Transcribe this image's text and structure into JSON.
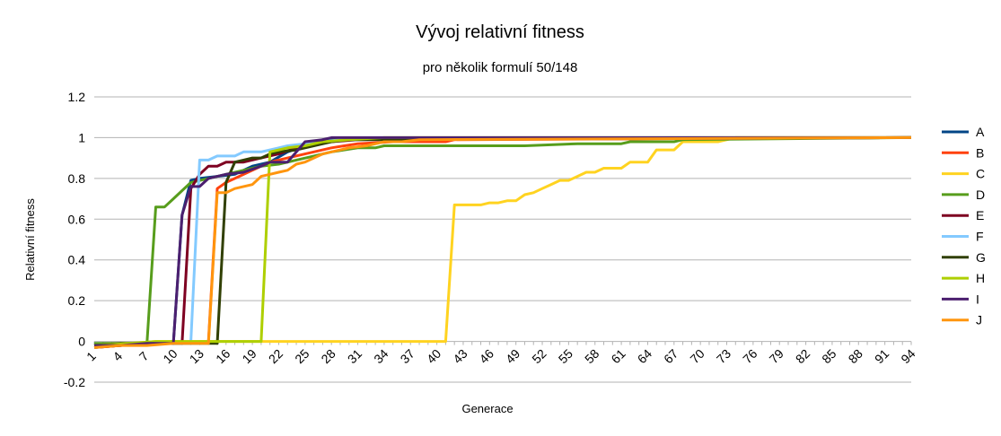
{
  "chart_data": {
    "type": "line",
    "title": "Vývoj relativní fitness",
    "subtitle": "pro několik formulí 50/148",
    "xlabel": "Generace",
    "ylabel": "Relativní fitness",
    "ylim": [
      -0.2,
      1.2
    ],
    "yticks": [
      "-0.2",
      "0",
      "0.2",
      "0.4",
      "0.6",
      "0.8",
      "1",
      "1.2"
    ],
    "xlim": [
      1,
      94
    ],
    "xticks": [
      "1",
      "4",
      "7",
      "10",
      "13",
      "16",
      "19",
      "22",
      "25",
      "28",
      "31",
      "34",
      "37",
      "40",
      "43",
      "46",
      "49",
      "52",
      "55",
      "58",
      "61",
      "64",
      "67",
      "70",
      "73",
      "76",
      "79",
      "82",
      "85",
      "88",
      "91",
      "94"
    ],
    "grid": "horizontal",
    "legend_position": "right",
    "series": [
      {
        "name": "A",
        "color": "#004586",
        "points": [
          [
            1,
            -0.02
          ],
          [
            3,
            -0.02
          ],
          [
            5,
            -0.01
          ],
          [
            10,
            -0.01
          ],
          [
            11,
            0.62
          ],
          [
            12,
            0.79
          ],
          [
            13,
            0.8
          ],
          [
            15,
            0.81
          ],
          [
            17,
            0.82
          ],
          [
            19,
            0.86
          ],
          [
            21,
            0.88
          ],
          [
            23,
            0.93
          ],
          [
            25,
            0.96
          ],
          [
            27,
            0.99
          ],
          [
            94,
            1
          ]
        ]
      },
      {
        "name": "B",
        "color": "#ff420e",
        "points": [
          [
            1,
            -0.03
          ],
          [
            4,
            -0.02
          ],
          [
            6,
            -0.01
          ],
          [
            14,
            0
          ],
          [
            15,
            0.75
          ],
          [
            16,
            0.78
          ],
          [
            17,
            0.8
          ],
          [
            19,
            0.84
          ],
          [
            21,
            0.88
          ],
          [
            23,
            0.9
          ],
          [
            25,
            0.92
          ],
          [
            28,
            0.95
          ],
          [
            31,
            0.97
          ],
          [
            35,
            0.98
          ],
          [
            41,
            0.98
          ],
          [
            42,
            0.99
          ],
          [
            94,
            1
          ]
        ]
      },
      {
        "name": "C",
        "color": "#ffd320",
        "points": [
          [
            1,
            -0.03
          ],
          [
            5,
            -0.01
          ],
          [
            8,
            0
          ],
          [
            41,
            0
          ],
          [
            42,
            0.67
          ],
          [
            44,
            0.67
          ],
          [
            45,
            0.67
          ],
          [
            46,
            0.68
          ],
          [
            47,
            0.68
          ],
          [
            48,
            0.69
          ],
          [
            49,
            0.69
          ],
          [
            50,
            0.72
          ],
          [
            51,
            0.73
          ],
          [
            52,
            0.75
          ],
          [
            53,
            0.77
          ],
          [
            54,
            0.79
          ],
          [
            55,
            0.79
          ],
          [
            56,
            0.81
          ],
          [
            57,
            0.83
          ],
          [
            58,
            0.83
          ],
          [
            59,
            0.85
          ],
          [
            60,
            0.85
          ],
          [
            61,
            0.85
          ],
          [
            62,
            0.88
          ],
          [
            63,
            0.88
          ],
          [
            64,
            0.88
          ],
          [
            65,
            0.94
          ],
          [
            66,
            0.94
          ],
          [
            67,
            0.94
          ],
          [
            68,
            0.98
          ],
          [
            70,
            0.98
          ],
          [
            72,
            0.98
          ],
          [
            74,
            1
          ],
          [
            94,
            1
          ]
        ]
      },
      {
        "name": "D",
        "color": "#579d1c",
        "points": [
          [
            1,
            -0.01
          ],
          [
            3,
            -0.01
          ],
          [
            5,
            -0.01
          ],
          [
            7,
            -0.01
          ],
          [
            8,
            0.66
          ],
          [
            9,
            0.66
          ],
          [
            10,
            0.7
          ],
          [
            11,
            0.74
          ],
          [
            12,
            0.78
          ],
          [
            14,
            0.8
          ],
          [
            16,
            0.82
          ],
          [
            18,
            0.84
          ],
          [
            20,
            0.86
          ],
          [
            22,
            0.87
          ],
          [
            24,
            0.89
          ],
          [
            26,
            0.91
          ],
          [
            28,
            0.93
          ],
          [
            31,
            0.95
          ],
          [
            33,
            0.95
          ],
          [
            34,
            0.96
          ],
          [
            49,
            0.96
          ],
          [
            50,
            0.96
          ],
          [
            56,
            0.97
          ],
          [
            61,
            0.97
          ],
          [
            62,
            0.98
          ],
          [
            67,
            0.98
          ],
          [
            68,
            0.99
          ],
          [
            94,
            1
          ]
        ]
      },
      {
        "name": "E",
        "color": "#7e0021",
        "points": [
          [
            1,
            -0.03
          ],
          [
            4,
            -0.02
          ],
          [
            7,
            -0.01
          ],
          [
            11,
            -0.01
          ],
          [
            12,
            0.75
          ],
          [
            13,
            0.82
          ],
          [
            14,
            0.86
          ],
          [
            15,
            0.86
          ],
          [
            16,
            0.88
          ],
          [
            18,
            0.88
          ],
          [
            20,
            0.9
          ],
          [
            22,
            0.92
          ],
          [
            24,
            0.95
          ],
          [
            26,
            0.97
          ],
          [
            28,
            0.98
          ],
          [
            31,
            0.99
          ],
          [
            94,
            1
          ]
        ]
      },
      {
        "name": "F",
        "color": "#83caff",
        "points": [
          [
            1,
            -0.03
          ],
          [
            5,
            -0.01
          ],
          [
            11,
            -0.01
          ],
          [
            12,
            0
          ],
          [
            13,
            0.89
          ],
          [
            14,
            0.89
          ],
          [
            15,
            0.91
          ],
          [
            16,
            0.91
          ],
          [
            17,
            0.91
          ],
          [
            18,
            0.93
          ],
          [
            19,
            0.93
          ],
          [
            20,
            0.93
          ],
          [
            21,
            0.94
          ],
          [
            22,
            0.95
          ],
          [
            23,
            0.96
          ],
          [
            25,
            0.97
          ],
          [
            27,
            0.98
          ],
          [
            29,
            0.99
          ],
          [
            94,
            1
          ]
        ]
      },
      {
        "name": "G",
        "color": "#314004",
        "points": [
          [
            1,
            -0.02
          ],
          [
            4,
            -0.01
          ],
          [
            8,
            -0.01
          ],
          [
            15,
            -0.01
          ],
          [
            16,
            0.78
          ],
          [
            17,
            0.88
          ],
          [
            18,
            0.89
          ],
          [
            19,
            0.9
          ],
          [
            20,
            0.9
          ],
          [
            21,
            0.92
          ],
          [
            22,
            0.93
          ],
          [
            24,
            0.94
          ],
          [
            26,
            0.96
          ],
          [
            28,
            0.98
          ],
          [
            30,
            0.99
          ],
          [
            94,
            1
          ]
        ]
      },
      {
        "name": "H",
        "color": "#aecf00",
        "points": [
          [
            1,
            -0.02
          ],
          [
            5,
            -0.01
          ],
          [
            8,
            0
          ],
          [
            20,
            0
          ],
          [
            21,
            0.93
          ],
          [
            22,
            0.94
          ],
          [
            23,
            0.95
          ],
          [
            25,
            0.96
          ],
          [
            27,
            0.98
          ],
          [
            30,
            0.99
          ],
          [
            34,
            1
          ],
          [
            94,
            1
          ]
        ]
      },
      {
        "name": "I",
        "color": "#4b1f6f",
        "points": [
          [
            1,
            -0.02
          ],
          [
            4,
            -0.02
          ],
          [
            7,
            -0.01
          ],
          [
            10,
            -0.01
          ],
          [
            11,
            0.62
          ],
          [
            12,
            0.76
          ],
          [
            13,
            0.76
          ],
          [
            14,
            0.8
          ],
          [
            15,
            0.81
          ],
          [
            16,
            0.82
          ],
          [
            18,
            0.83
          ],
          [
            20,
            0.86
          ],
          [
            21,
            0.88
          ],
          [
            22,
            0.88
          ],
          [
            23,
            0.88
          ],
          [
            24,
            0.93
          ],
          [
            25,
            0.98
          ],
          [
            27,
            0.99
          ],
          [
            28,
            1
          ],
          [
            94,
            1
          ]
        ]
      },
      {
        "name": "J",
        "color": "#ff950e",
        "points": [
          [
            1,
            -0.03
          ],
          [
            4,
            -0.02
          ],
          [
            7,
            -0.02
          ],
          [
            10,
            -0.01
          ],
          [
            14,
            -0.01
          ],
          [
            15,
            0.73
          ],
          [
            16,
            0.73
          ],
          [
            17,
            0.75
          ],
          [
            18,
            0.76
          ],
          [
            19,
            0.77
          ],
          [
            20,
            0.81
          ],
          [
            21,
            0.82
          ],
          [
            22,
            0.83
          ],
          [
            23,
            0.84
          ],
          [
            24,
            0.87
          ],
          [
            25,
            0.88
          ],
          [
            26,
            0.9
          ],
          [
            27,
            0.92
          ],
          [
            28,
            0.93
          ],
          [
            30,
            0.95
          ],
          [
            32,
            0.96
          ],
          [
            34,
            0.98
          ],
          [
            36,
            0.98
          ],
          [
            38,
            0.99
          ],
          [
            94,
            1
          ]
        ]
      }
    ]
  }
}
